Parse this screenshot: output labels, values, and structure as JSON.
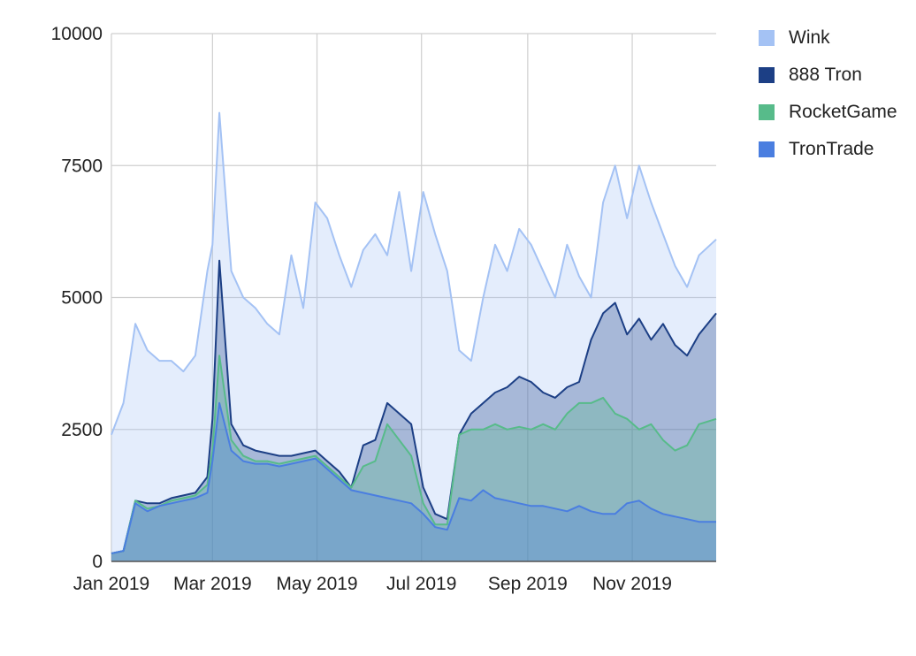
{
  "chart_data": {
    "type": "area",
    "title": "",
    "xlabel": "",
    "ylabel": "",
    "ylim": [
      0,
      10000
    ],
    "yticks": [
      0,
      2500,
      5000,
      7500,
      10000
    ],
    "ytick_labels": [
      "0",
      "2500",
      "5000",
      "7500",
      "10000"
    ],
    "xlim": [
      "2019-01-01",
      "2019-12-20"
    ],
    "xticks": [
      "2019-01-01",
      "2019-03-01",
      "2019-05-01",
      "2019-07-01",
      "2019-09-01",
      "2019-11-01"
    ],
    "xtick_labels": [
      "Jan 2019",
      "Mar 2019",
      "May 2019",
      "Jul 2019",
      "Sep 2019",
      "Nov 2019"
    ],
    "grid": true,
    "legend_position": "right",
    "overlapping": true,
    "x": [
      "2019-01-01",
      "2019-01-08",
      "2019-01-15",
      "2019-01-22",
      "2019-01-29",
      "2019-02-05",
      "2019-02-12",
      "2019-02-19",
      "2019-02-26",
      "2019-03-01",
      "2019-03-05",
      "2019-03-12",
      "2019-03-19",
      "2019-03-26",
      "2019-04-02",
      "2019-04-09",
      "2019-04-16",
      "2019-04-23",
      "2019-04-30",
      "2019-05-07",
      "2019-05-14",
      "2019-05-21",
      "2019-05-28",
      "2019-06-04",
      "2019-06-11",
      "2019-06-18",
      "2019-06-25",
      "2019-07-02",
      "2019-07-09",
      "2019-07-16",
      "2019-07-23",
      "2019-07-30",
      "2019-08-06",
      "2019-08-13",
      "2019-08-20",
      "2019-08-27",
      "2019-09-03",
      "2019-09-10",
      "2019-09-17",
      "2019-09-24",
      "2019-10-01",
      "2019-10-08",
      "2019-10-15",
      "2019-10-22",
      "2019-10-29",
      "2019-11-05",
      "2019-11-12",
      "2019-11-19",
      "2019-11-26",
      "2019-12-03",
      "2019-12-10",
      "2019-12-20"
    ],
    "series": [
      {
        "name": "Wink",
        "color": "#a4c2f4",
        "values": [
          2400,
          3000,
          4500,
          4000,
          3800,
          3800,
          3600,
          3900,
          5500,
          6000,
          8500,
          5500,
          5000,
          4800,
          4500,
          4300,
          5800,
          4800,
          6800,
          6500,
          5800,
          5200,
          5900,
          6200,
          5800,
          7000,
          5500,
          7000,
          6200,
          5500,
          4000,
          3800,
          5000,
          6000,
          5500,
          6300,
          6000,
          5500,
          5000,
          6000,
          5400,
          5000,
          6800,
          7500,
          6500,
          7500,
          6800,
          6200,
          5600,
          5200,
          5800,
          6100
        ]
      },
      {
        "name": "888 Tron",
        "color": "#1c3f85",
        "values": [
          150,
          200,
          1150,
          1100,
          1100,
          1200,
          1250,
          1300,
          1600,
          2700,
          5700,
          2600,
          2200,
          2100,
          2050,
          2000,
          2000,
          2050,
          2100,
          1900,
          1700,
          1400,
          2200,
          2300,
          3000,
          2800,
          2600,
          1400,
          900,
          800,
          2400,
          2800,
          3000,
          3200,
          3300,
          3500,
          3400,
          3200,
          3100,
          3300,
          3400,
          4200,
          4700,
          4900,
          4300,
          4600,
          4200,
          4500,
          4100,
          3900,
          4300,
          4700
        ]
      },
      {
        "name": "RocketGame",
        "color": "#57bb8a",
        "values": [
          150,
          200,
          1150,
          1000,
          1050,
          1150,
          1200,
          1250,
          1450,
          2100,
          3900,
          2300,
          2000,
          1900,
          1900,
          1850,
          1900,
          1950,
          2000,
          1800,
          1600,
          1400,
          1800,
          1900,
          2600,
          2300,
          2000,
          1100,
          700,
          700,
          2400,
          2500,
          2500,
          2600,
          2500,
          2550,
          2500,
          2600,
          2500,
          2800,
          3000,
          3000,
          3100,
          2800,
          2700,
          2500,
          2600,
          2300,
          2100,
          2200,
          2600,
          2700
        ]
      },
      {
        "name": "TronTrade",
        "color": "#4a7ee0",
        "values": [
          150,
          200,
          1100,
          950,
          1050,
          1100,
          1150,
          1200,
          1300,
          1900,
          3000,
          2100,
          1900,
          1850,
          1850,
          1800,
          1850,
          1900,
          1950,
          1750,
          1550,
          1350,
          1300,
          1250,
          1200,
          1150,
          1100,
          900,
          650,
          600,
          1200,
          1150,
          1350,
          1200,
          1150,
          1100,
          1050,
          1050,
          1000,
          950,
          1050,
          950,
          900,
          900,
          1100,
          1150,
          1000,
          900,
          850,
          800,
          750,
          750
        ]
      }
    ]
  }
}
